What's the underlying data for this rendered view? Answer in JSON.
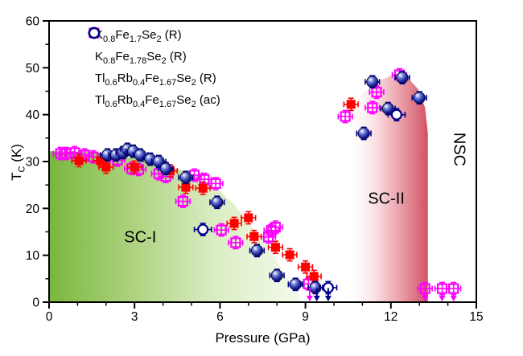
{
  "chart_data": {
    "type": "scatter",
    "title": "",
    "xlabel": "Pressure (GPa)",
    "ylabel_segments": [
      {
        "text": "T",
        "sub": false
      },
      {
        "text": "C",
        "sub": true
      },
      {
        "text": " (K)",
        "sub": false
      }
    ],
    "xlim": [
      0,
      15
    ],
    "ylim": [
      0,
      60
    ],
    "x_major_ticks": [
      0,
      3,
      6,
      9,
      12,
      15
    ],
    "x_minor_step": 1,
    "y_major_ticks": [
      0,
      10,
      20,
      30,
      40,
      50,
      60
    ],
    "y_minor_step": 5,
    "axis_color": "#000000",
    "background": "#ffffff",
    "legend_position": "top-left-inside",
    "grid": false,
    "series": [
      {
        "id": "K08Fe17Se2-R",
        "label_segments": [
          {
            "text": "K",
            "sub": false
          },
          {
            "text": "0.8",
            "sub": true
          },
          {
            "text": "Fe",
            "sub": false
          },
          {
            "text": "1.7",
            "sub": true
          },
          {
            "text": "Se",
            "sub": false
          },
          {
            "text": "2",
            "sub": true
          },
          {
            "text": " (R)",
            "sub": false
          }
        ],
        "marker": "open-square",
        "color": "#ff00ff",
        "xerr_gpa": 0.25,
        "yerr_k": 1.3,
        "points": [
          [
            0.4,
            31.7
          ],
          [
            0.6,
            31.7
          ],
          [
            0.9,
            31.9
          ],
          [
            1.25,
            31.4
          ],
          [
            1.55,
            31.0
          ],
          [
            2.4,
            30.3
          ],
          [
            2.9,
            28.5
          ],
          [
            3.15,
            28.3
          ],
          [
            3.85,
            27.4
          ],
          [
            4.1,
            26.8
          ],
          [
            4.7,
            21.5
          ],
          [
            5.1,
            27.1
          ],
          [
            5.45,
            26.2
          ],
          [
            5.85,
            25.3
          ],
          [
            6.05,
            15.4
          ],
          [
            6.55,
            12.7
          ],
          [
            7.7,
            13.9
          ],
          [
            7.8,
            15.3
          ],
          [
            7.95,
            16.0
          ],
          [
            9.1,
            3.9
          ],
          [
            10.4,
            39.6
          ],
          [
            11.35,
            41.5
          ],
          [
            11.5,
            44.8
          ],
          [
            12.3,
            48.5
          ],
          [
            13.2,
            2.9
          ],
          [
            13.8,
            2.9
          ],
          [
            14.2,
            2.9
          ]
        ]
      },
      {
        "id": "K08Fe178Se2-R",
        "label_segments": [
          {
            "text": "K",
            "sub": false
          },
          {
            "text": "0.8",
            "sub": true
          },
          {
            "text": "Fe",
            "sub": false
          },
          {
            "text": "1.78",
            "sub": true
          },
          {
            "text": "Se",
            "sub": false
          },
          {
            "text": "2",
            "sub": true
          },
          {
            "text": " (R)",
            "sub": false
          }
        ],
        "marker": "filled-square",
        "color": "#ff0000",
        "xerr_gpa": 0.25,
        "yerr_k": 1.3,
        "points": [
          [
            1.05,
            30.2
          ],
          [
            1.8,
            30.2
          ],
          [
            2.0,
            28.8
          ],
          [
            3.0,
            28.8
          ],
          [
            4.25,
            28.0
          ],
          [
            4.8,
            24.5
          ],
          [
            5.4,
            24.3
          ],
          [
            6.5,
            16.8
          ],
          [
            7.0,
            18.0
          ],
          [
            7.2,
            14.0
          ],
          [
            7.95,
            11.7
          ],
          [
            8.45,
            10.1
          ],
          [
            9.0,
            7.5
          ],
          [
            9.3,
            5.5
          ],
          [
            10.6,
            42.2
          ]
        ]
      },
      {
        "id": "Tl06Rb04Fe167Se2-R",
        "label_segments": [
          {
            "text": "Tl",
            "sub": false
          },
          {
            "text": "0.6",
            "sub": true
          },
          {
            "text": "Rb",
            "sub": false
          },
          {
            "text": "0.4",
            "sub": true
          },
          {
            "text": "Fe",
            "sub": false
          },
          {
            "text": "1.67",
            "sub": true
          },
          {
            "text": "Se",
            "sub": false
          },
          {
            "text": "2",
            "sub": true
          },
          {
            "text": " (R)",
            "sub": false
          }
        ],
        "marker": "sphere",
        "color": "#00008b",
        "xerr_gpa": 0.25,
        "yerr_k": 1.3,
        "points": [
          [
            2.05,
            31.4
          ],
          [
            2.35,
            31.4
          ],
          [
            2.6,
            31.9
          ],
          [
            2.75,
            32.6
          ],
          [
            2.95,
            32.2
          ],
          [
            3.2,
            31.4
          ],
          [
            3.55,
            30.5
          ],
          [
            3.85,
            30.0
          ],
          [
            4.1,
            28.5
          ],
          [
            4.8,
            26.6
          ],
          [
            5.9,
            21.3
          ],
          [
            7.3,
            11.0
          ],
          [
            8.0,
            5.7
          ],
          [
            8.65,
            3.8
          ],
          [
            9.35,
            3.1
          ],
          [
            11.05,
            36.0
          ],
          [
            11.35,
            47.0
          ],
          [
            11.9,
            41.3
          ],
          [
            12.4,
            47.9
          ],
          [
            13.0,
            43.6
          ]
        ]
      },
      {
        "id": "Tl06Rb04Fe167Se2-ac",
        "label_segments": [
          {
            "text": "Tl",
            "sub": false
          },
          {
            "text": "0.6",
            "sub": true
          },
          {
            "text": "Rb",
            "sub": false
          },
          {
            "text": "0.4",
            "sub": true
          },
          {
            "text": "Fe",
            "sub": false
          },
          {
            "text": "1.67",
            "sub": true
          },
          {
            "text": "Se",
            "sub": false
          },
          {
            "text": "2",
            "sub": true
          },
          {
            "text": " (ac)",
            "sub": false
          }
        ],
        "marker": "open-circle",
        "color": "#00008b",
        "xerr_gpa": 0.3,
        "yerr_k": 1.3,
        "points": [
          [
            5.4,
            15.5
          ],
          [
            9.8,
            3.1
          ],
          [
            12.2,
            40.0
          ]
        ]
      }
    ],
    "regions": [
      {
        "id": "sc1",
        "label": "SC-I",
        "label_x": 3.2,
        "label_y": 13.7,
        "rotated": false,
        "gradient": [
          "#79b73d",
          "#a9d078",
          "#d8ecbf",
          "#f2f9ea"
        ],
        "boundary": [
          [
            0,
            32.2
          ],
          [
            1.1,
            32.1
          ],
          [
            2.2,
            31.6
          ],
          [
            3.4,
            30.2
          ],
          [
            4.5,
            28.5
          ],
          [
            5.3,
            26.8
          ],
          [
            5.9,
            24.2
          ],
          [
            6.5,
            20.8
          ],
          [
            7.0,
            16.8
          ],
          [
            7.6,
            12.7
          ],
          [
            8.0,
            8.7
          ],
          [
            8.4,
            4.8
          ],
          [
            8.9,
            0
          ]
        ]
      },
      {
        "id": "sc2",
        "label": "SC-II",
        "label_x": 11.84,
        "label_y": 22.0,
        "rotated": false,
        "gradient": [
          "#ffffff",
          "#f2b9c0",
          "#d25063"
        ],
        "boundary": [
          [
            10.37,
            0
          ],
          [
            10.37,
            36
          ],
          [
            10.6,
            41
          ],
          [
            11.0,
            44.5
          ],
          [
            11.6,
            47.3
          ],
          [
            12.1,
            48.5
          ],
          [
            12.6,
            47.8
          ],
          [
            12.95,
            45.5
          ],
          [
            13.2,
            41.5
          ],
          [
            13.3,
            36
          ],
          [
            13.3,
            0
          ]
        ]
      },
      {
        "id": "nsc",
        "label": "NSC",
        "label_x": 14.38,
        "label_y": 32.6,
        "rotated": true
      }
    ],
    "arrows": [
      {
        "x_gpa": 9.15,
        "from_k": 3.0,
        "color": "#ff00ff",
        "dashed": false
      },
      {
        "x_gpa": 9.4,
        "from_k": 3.0,
        "color": "#00008b",
        "dashed": false
      },
      {
        "x_gpa": 9.8,
        "from_k": 3.0,
        "color": "#00008b",
        "dashed": false
      },
      {
        "x_gpa": 13.2,
        "from_k": 1.8,
        "color": "#ff00ff",
        "dashed": true
      },
      {
        "x_gpa": 13.8,
        "from_k": 1.8,
        "color": "#ff00ff",
        "dashed": true
      },
      {
        "x_gpa": 14.2,
        "from_k": 1.8,
        "color": "#ff00ff",
        "dashed": true
      }
    ]
  }
}
